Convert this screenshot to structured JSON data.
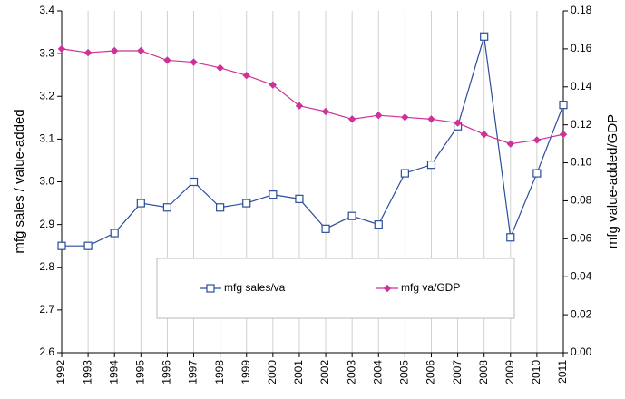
{
  "chart_data": {
    "type": "line",
    "categories": [
      "1992",
      "1993",
      "1994",
      "1995",
      "1996",
      "1997",
      "1998",
      "1999",
      "2000",
      "2001",
      "2002",
      "2003",
      "2004",
      "2005",
      "2006",
      "2007",
      "2008",
      "2009",
      "2010",
      "2011"
    ],
    "y_label": "mfg sales / value-added",
    "y2_label": "mfg value-added/GDP",
    "ylim": [
      2.6,
      3.4
    ],
    "yticks": [
      2.6,
      2.7,
      2.8,
      2.9,
      {
        "value": 3,
        "label": "3.0"
      },
      3.1,
      3.2,
      3.3,
      3.4
    ],
    "y2lim": [
      0,
      0.18
    ],
    "y2ticks": [
      {
        "value": 0,
        "label": "0.00"
      },
      {
        "value": 0.02,
        "label": "0.02"
      },
      {
        "value": 0.04,
        "label": "0.04"
      },
      {
        "value": 0.06,
        "label": "0.06"
      },
      {
        "value": 0.08,
        "label": "0.08"
      },
      {
        "value": 0.1,
        "label": "0.10"
      },
      {
        "value": 0.12,
        "label": "0.12"
      },
      {
        "value": 0.14,
        "label": "0.14"
      },
      {
        "value": 0.16,
        "label": "0.16"
      },
      {
        "value": 0.18,
        "label": "0.18"
      }
    ],
    "grid": "x",
    "series": [
      {
        "name": "mfg sales/va",
        "color": "#2b4d9b",
        "marker": "square",
        "axis": "y",
        "values": [
          2.85,
          2.85,
          2.88,
          2.95,
          2.94,
          3.0,
          2.94,
          2.95,
          2.97,
          2.96,
          2.89,
          2.92,
          2.9,
          3.02,
          3.04,
          3.13,
          3.34,
          2.87,
          3.02,
          3.18
        ]
      },
      {
        "name": "mfg va/GDP",
        "color": "#cc3399",
        "marker": "diamond",
        "axis": "y2",
        "values": [
          0.16,
          0.158,
          0.159,
          0.159,
          0.154,
          0.153,
          0.15,
          0.146,
          0.141,
          0.13,
          0.127,
          0.123,
          0.125,
          0.124,
          0.123,
          0.121,
          0.115,
          0.11,
          0.112,
          0.115
        ]
      }
    ]
  }
}
